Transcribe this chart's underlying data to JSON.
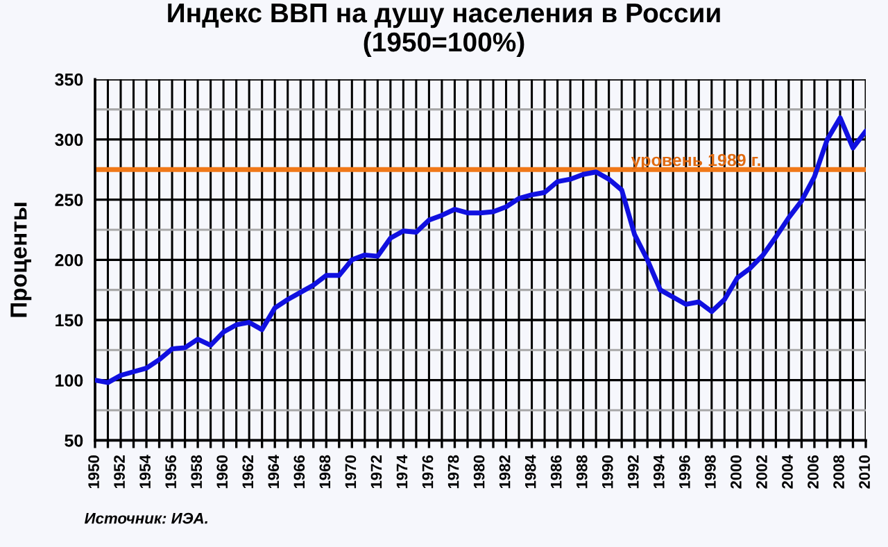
{
  "chart_data": {
    "type": "line",
    "title": "Индекс ВВП на душу населения в России\n(1950=100%)",
    "ylabel": "Проценты",
    "x": [
      1950,
      1951,
      1952,
      1953,
      1954,
      1955,
      1956,
      1957,
      1958,
      1959,
      1960,
      1961,
      1962,
      1963,
      1964,
      1965,
      1966,
      1967,
      1968,
      1969,
      1970,
      1971,
      1972,
      1973,
      1974,
      1975,
      1976,
      1977,
      1978,
      1979,
      1980,
      1981,
      1982,
      1983,
      1984,
      1985,
      1986,
      1987,
      1988,
      1989,
      1990,
      1991,
      1992,
      1993,
      1994,
      1995,
      1996,
      1997,
      1998,
      1999,
      2000,
      2001,
      2002,
      2003,
      2004,
      2005,
      2006,
      2007,
      2008,
      2009,
      2010
    ],
    "series": [
      {
        "color": "#1010e0",
        "values": [
          100,
          98,
          104,
          107,
          110,
          117,
          126,
          127,
          134,
          129,
          140,
          146,
          148,
          142,
          160,
          167,
          173,
          179,
          187,
          187,
          200,
          204,
          203,
          218,
          224,
          223,
          233,
          237,
          242,
          239,
          239,
          240,
          244,
          251,
          254,
          256,
          265,
          267,
          271,
          273,
          267,
          258,
          221,
          200,
          175,
          169,
          163,
          165,
          157,
          167,
          185,
          193,
          204,
          219,
          235,
          249,
          269,
          300,
          318,
          293,
          307
        ]
      }
    ],
    "xlim": [
      1950,
      2010
    ],
    "xticks": [
      1950,
      {
        "value": 1951,
        "label": null
      },
      1952,
      {
        "value": 1953,
        "label": null
      },
      1954,
      {
        "value": 1955,
        "label": null
      },
      1956,
      {
        "value": 1957,
        "label": null
      },
      1958,
      {
        "value": 1959,
        "label": null
      },
      1960,
      {
        "value": 1961,
        "label": null
      },
      1962,
      {
        "value": 1963,
        "label": null
      },
      1964,
      {
        "value": 1965,
        "label": null
      },
      1966,
      {
        "value": 1967,
        "label": null
      },
      1968,
      {
        "value": 1969,
        "label": null
      },
      1970,
      {
        "value": 1971,
        "label": null
      },
      1972,
      {
        "value": 1973,
        "label": null
      },
      1974,
      {
        "value": 1975,
        "label": null
      },
      1976,
      {
        "value": 1977,
        "label": null
      },
      1978,
      {
        "value": 1979,
        "label": null
      },
      1980,
      {
        "value": 1981,
        "label": null
      },
      1982,
      {
        "value": 1983,
        "label": null
      },
      1984,
      {
        "value": 1985,
        "label": null
      },
      1986,
      {
        "value": 1987,
        "label": null
      },
      1988,
      {
        "value": 1989,
        "label": null
      },
      1990,
      {
        "value": 1991,
        "label": null
      },
      1992,
      {
        "value": 1993,
        "label": null
      },
      1994,
      {
        "value": 1995,
        "label": null
      },
      1996,
      {
        "value": 1997,
        "label": null
      },
      1998,
      {
        "value": 1999,
        "label": null
      },
      2000,
      {
        "value": 2001,
        "label": null
      },
      2002,
      {
        "value": 2003,
        "label": null
      },
      2004,
      {
        "value": 2005,
        "label": null
      },
      2006,
      {
        "value": 2007,
        "label": null
      },
      2008,
      {
        "value": 2009,
        "label": null
      },
      2010
    ],
    "ylim": [
      50,
      350
    ],
    "yticks": [
      50,
      {
        "value": 75,
        "label": null
      },
      100,
      {
        "value": 125,
        "label": null
      },
      150,
      {
        "value": 175,
        "label": null
      },
      200,
      {
        "value": 225,
        "label": null
      },
      250,
      {
        "value": 275,
        "label": null
      },
      300,
      {
        "value": 325,
        "label": null
      },
      350
    ],
    "grid": true,
    "ref_lines": [
      {
        "axis": "y",
        "value": 275,
        "label": "уровень 1989 г.",
        "color": "#f07818"
      }
    ],
    "annotations": [
      "Источник: ИЭА."
    ]
  }
}
